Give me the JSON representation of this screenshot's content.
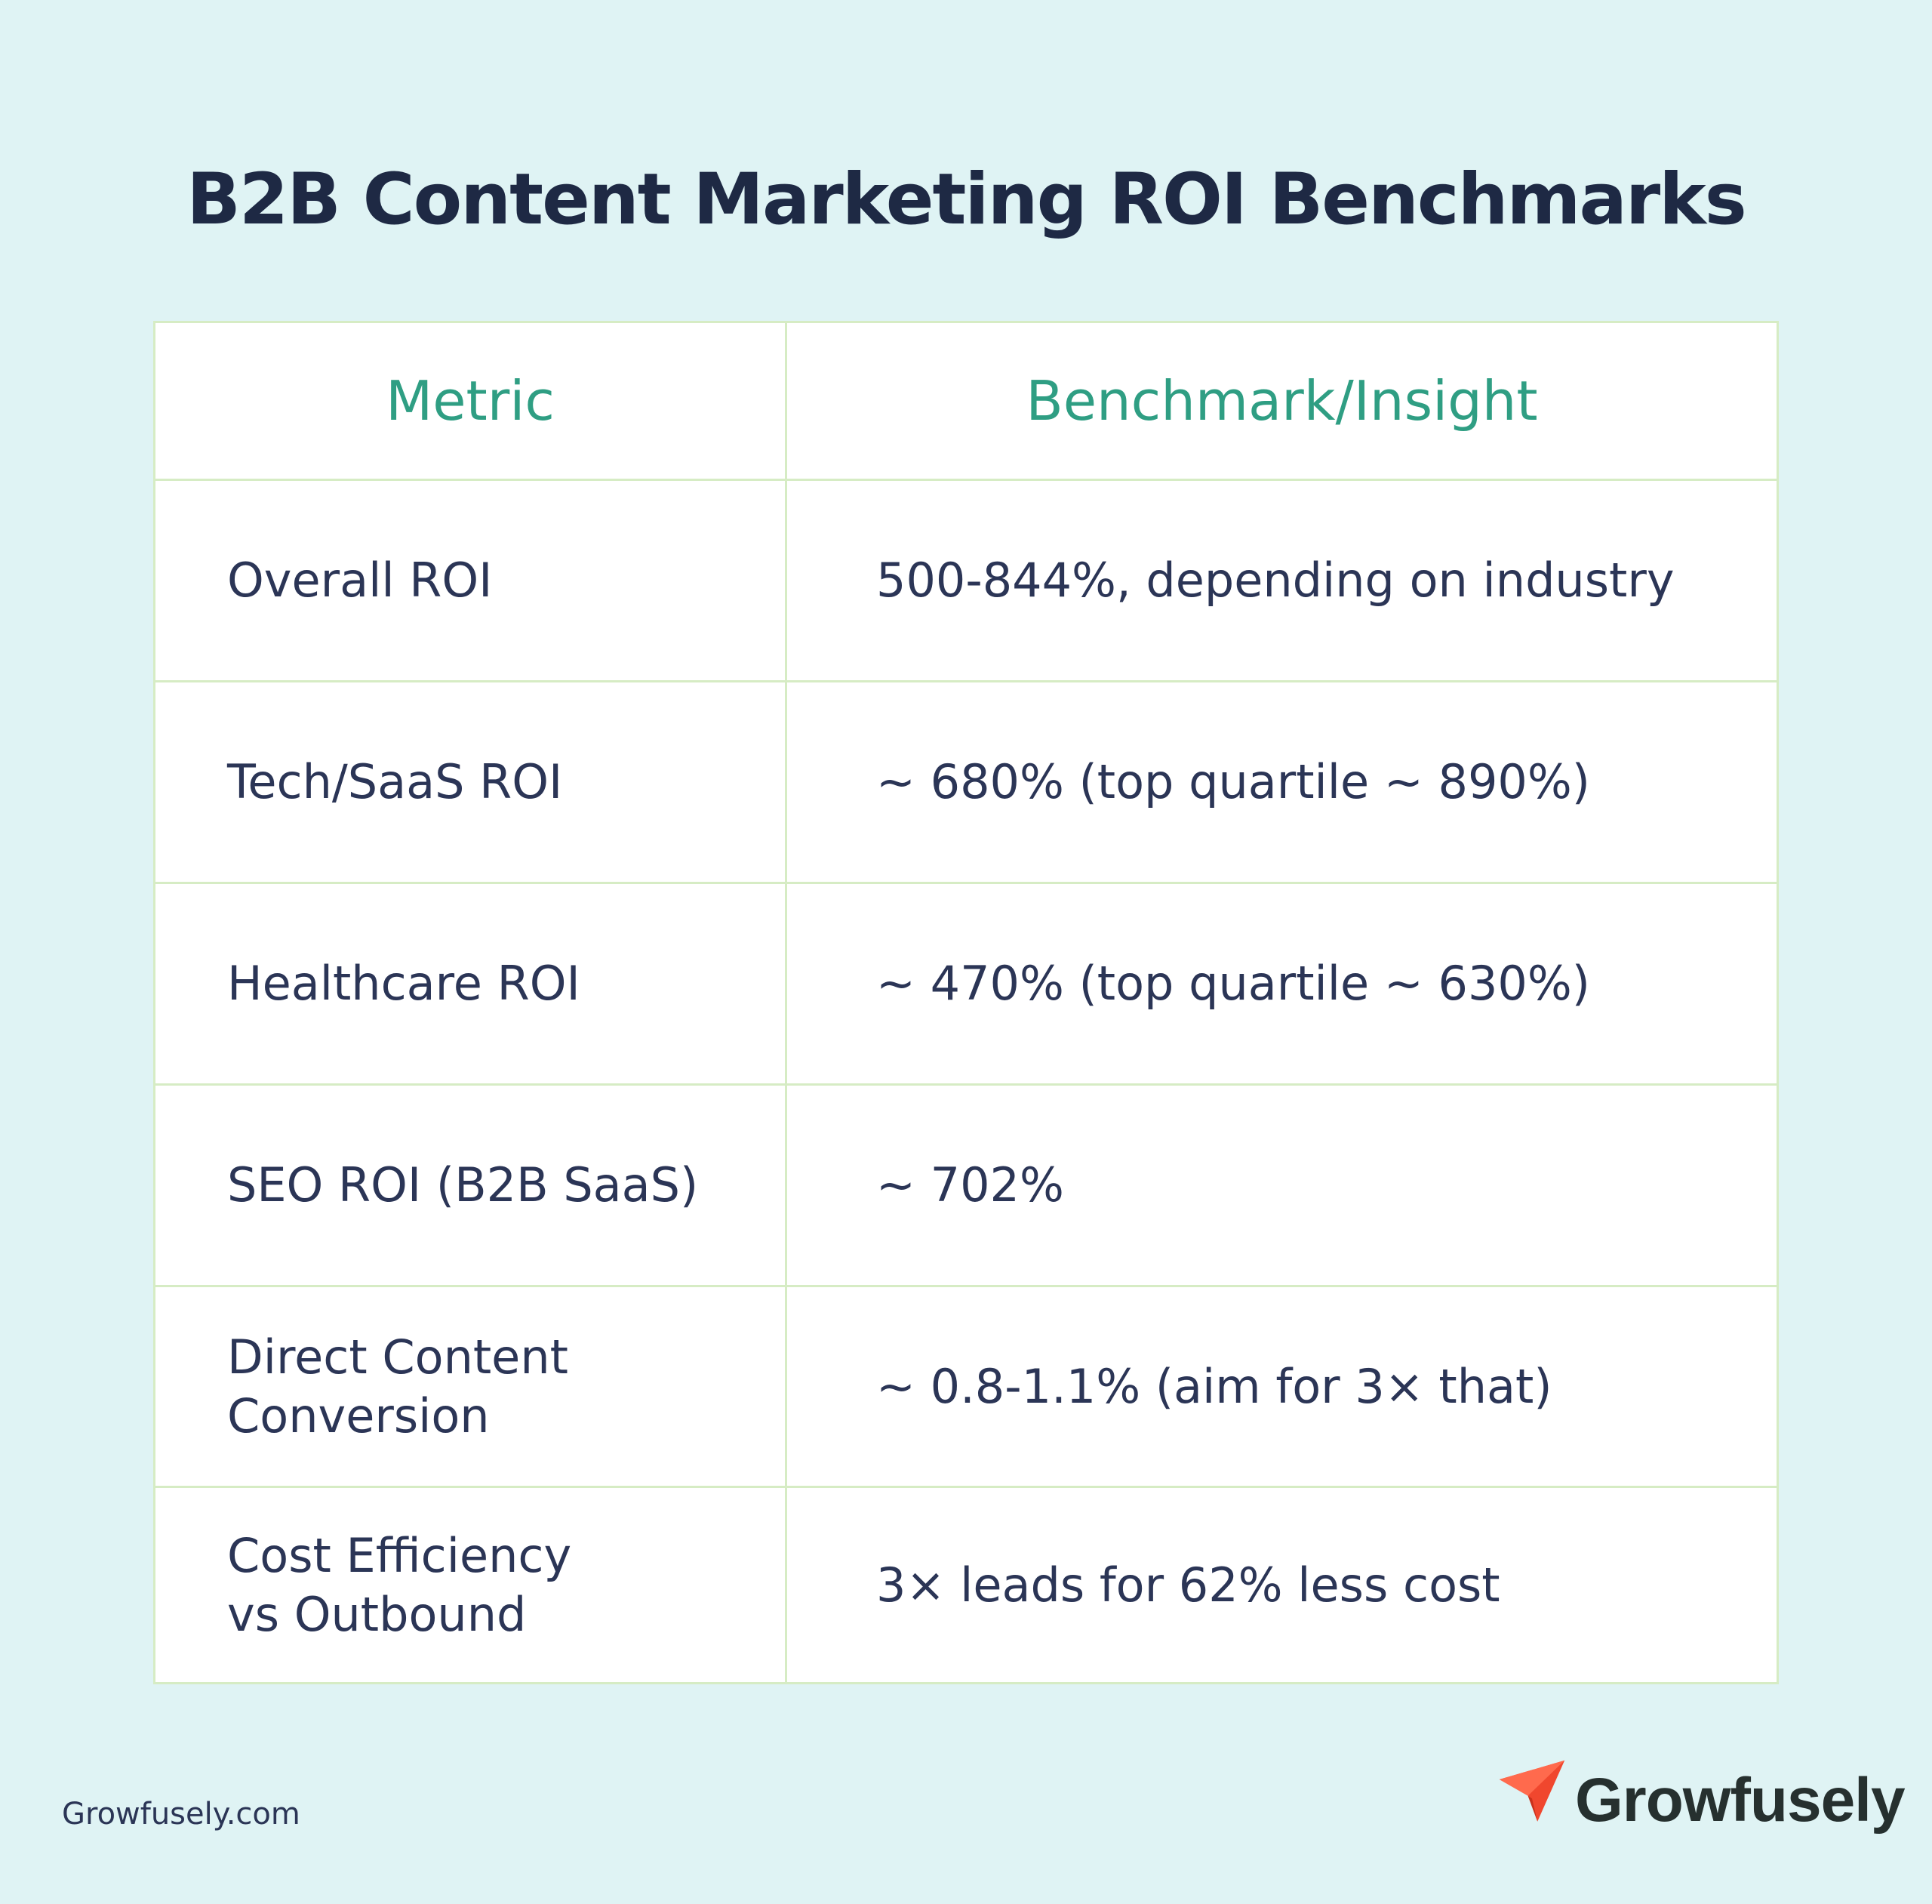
{
  "title": "B2B Content Marketing ROI Benchmarks",
  "table": {
    "headers": {
      "metric": "Metric",
      "benchmark": "Benchmark/Insight"
    },
    "rows": [
      {
        "metric": "Overall ROI",
        "benchmark": "500-844%, depending on industry"
      },
      {
        "metric": "Tech/SaaS ROI",
        "benchmark": "~ 680% (top quartile ~ 890%)"
      },
      {
        "metric": "Healthcare ROI",
        "benchmark": "~ 470% (top quartile ~ 630%)"
      },
      {
        "metric": "SEO ROI (B2B SaaS)",
        "benchmark": "~ 702%"
      },
      {
        "metric": "Direct Content\nConversion",
        "benchmark": "~ 0.8-1.1% (aim for 3× that)"
      },
      {
        "metric": "Cost Efficiency\nvs Outbound",
        "benchmark": "3× leads for 62% less cost"
      }
    ]
  },
  "footer": {
    "url": "Growfusely.com",
    "brand_name": "Growfusely",
    "brand_icon": "paper-plane-icon",
    "brand_color": "#f0472e"
  }
}
